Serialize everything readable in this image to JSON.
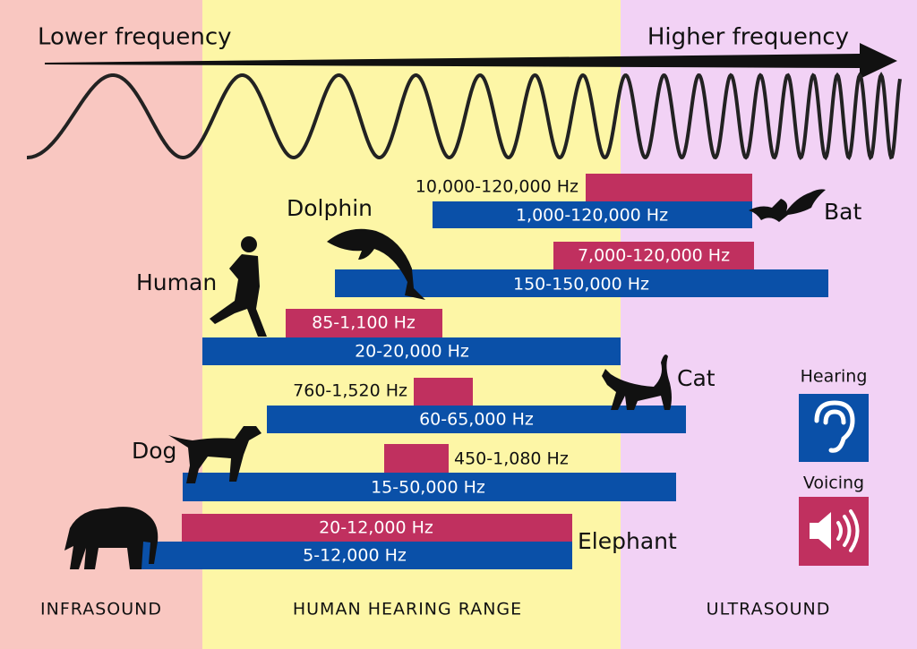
{
  "header": {
    "lower": "Lower frequency",
    "higher": "Higher frequency"
  },
  "zones": [
    "INFRASOUND",
    "HUMAN HEARING RANGE",
    "ULTRASOUND"
  ],
  "animals": [
    {
      "name": "Bat",
      "voicing": "10,000-120,000 Hz",
      "hearing": "1,000-120,000 Hz"
    },
    {
      "name": "Dolphin",
      "voicing": "7,000-120,000 Hz",
      "hearing": "150-150,000 Hz"
    },
    {
      "name": "Human",
      "voicing": "85-1,100 Hz",
      "hearing": "20-20,000 Hz"
    },
    {
      "name": "Cat",
      "voicing": "760-1,520 Hz",
      "hearing": "60-65,000 Hz"
    },
    {
      "name": "Dog",
      "voicing": "450-1,080 Hz",
      "hearing": "15-50,000 Hz"
    },
    {
      "name": "Elephant",
      "voicing": "20-12,000 Hz",
      "hearing": "5-12,000 Hz"
    }
  ],
  "legend": {
    "hearing": "Hearing",
    "voicing": "Voicing"
  }
}
